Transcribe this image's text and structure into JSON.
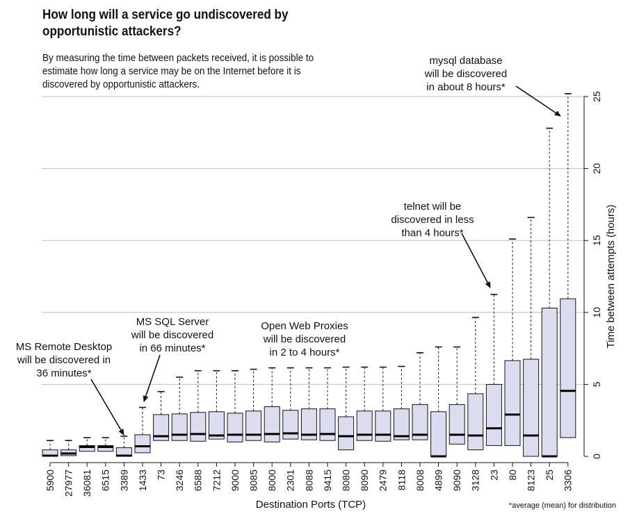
{
  "title": "How long will a service go undiscovered by opportunistic attackers?",
  "subtitle": "By measuring the time between packets received, it is possible to estimate how long a service may be on the Internet before it is discovered by opportunistic attackers.",
  "footnote": "*average (mean) for distribution",
  "annotations": {
    "mysql": "mysql database\nwill be discovered\nin about 8 hours*",
    "telnet": "telnet will be\ndiscovered in less\nthan 4 hours*",
    "proxies": "Open Web Proxies\nwill be discovered\nin 2 to 4 hours*",
    "mssql": "MS SQL Server\nwill be discovered\nin 66 minutes*",
    "rdp": "MS Remote Desktop\nwill be discovered in\n36 minutes*"
  },
  "chart_data": {
    "type": "boxplot",
    "xlabel": "Destination Ports (TCP)",
    "ylabel": "Time between attempts (hours)",
    "ylim": [
      0,
      25
    ],
    "yticks": [
      0,
      5,
      10,
      15,
      20,
      25
    ],
    "grid": "horizontal",
    "y_axis_side": "right",
    "box_color": "#dcdcf0",
    "categories": [
      "5900",
      "27977",
      "36081",
      "6515",
      "3389",
      "1433",
      "73",
      "3246",
      "6588",
      "7212",
      "9000",
      "8085",
      "8000",
      "2301",
      "8088",
      "9415",
      "8080",
      "8090",
      "2479",
      "8118",
      "8008",
      "4899",
      "9090",
      "3128",
      "23",
      "80",
      "8123",
      "25",
      "3306"
    ],
    "series": [
      {
        "values": [
          {
            "whisker_low": 0,
            "q1": 0.0,
            "median": 0.05,
            "q3": 0.45,
            "whisker_high": 1.1
          },
          {
            "whisker_low": 0,
            "q1": 0.05,
            "median": 0.2,
            "q3": 0.45,
            "whisker_high": 1.1
          },
          {
            "whisker_low": 0,
            "q1": 0.35,
            "median": 0.65,
            "q3": 0.75,
            "whisker_high": 1.3
          },
          {
            "whisker_low": 0,
            "q1": 0.35,
            "median": 0.65,
            "q3": 0.75,
            "whisker_high": 1.3
          },
          {
            "whisker_low": 0,
            "q1": 0.0,
            "median": 0.05,
            "q3": 0.6,
            "whisker_high": 1.4
          },
          {
            "whisker_low": 0,
            "q1": 0.25,
            "median": 0.7,
            "q3": 1.5,
            "whisker_high": 3.4
          },
          {
            "whisker_low": 0,
            "q1": 1.1,
            "median": 1.4,
            "q3": 2.9,
            "whisker_high": 4.5
          },
          {
            "whisker_low": 0,
            "q1": 1.1,
            "median": 1.5,
            "q3": 2.95,
            "whisker_high": 5.5
          },
          {
            "whisker_low": 0,
            "q1": 1.05,
            "median": 1.55,
            "q3": 3.05,
            "whisker_high": 5.95
          },
          {
            "whisker_low": 0,
            "q1": 1.2,
            "median": 1.45,
            "q3": 3.1,
            "whisker_high": 5.95
          },
          {
            "whisker_low": 0,
            "q1": 1.0,
            "median": 1.5,
            "q3": 3.0,
            "whisker_high": 5.95
          },
          {
            "whisker_low": 0,
            "q1": 1.1,
            "median": 1.5,
            "q3": 3.15,
            "whisker_high": 6.05
          },
          {
            "whisker_low": 0,
            "q1": 1.0,
            "median": 1.55,
            "q3": 3.45,
            "whisker_high": 6.15
          },
          {
            "whisker_low": 0,
            "q1": 1.2,
            "median": 1.6,
            "q3": 3.2,
            "whisker_high": 6.15
          },
          {
            "whisker_low": 0,
            "q1": 1.15,
            "median": 1.5,
            "q3": 3.3,
            "whisker_high": 6.15
          },
          {
            "whisker_low": 0,
            "q1": 1.1,
            "median": 1.55,
            "q3": 3.3,
            "whisker_high": 6.15
          },
          {
            "whisker_low": 0,
            "q1": 0.45,
            "median": 1.4,
            "q3": 2.75,
            "whisker_high": 6.2
          },
          {
            "whisker_low": 0,
            "q1": 1.1,
            "median": 1.5,
            "q3": 3.15,
            "whisker_high": 6.2
          },
          {
            "whisker_low": 0,
            "q1": 1.05,
            "median": 1.5,
            "q3": 3.15,
            "whisker_high": 6.2
          },
          {
            "whisker_low": 0,
            "q1": 1.15,
            "median": 1.4,
            "q3": 3.3,
            "whisker_high": 6.25
          },
          {
            "whisker_low": 0,
            "q1": 1.15,
            "median": 1.5,
            "q3": 3.6,
            "whisker_high": 7.2
          },
          {
            "whisker_low": 0,
            "q1": 0.0,
            "median": 0.0,
            "q3": 3.1,
            "whisker_high": 7.6
          },
          {
            "whisker_low": 0,
            "q1": 0.85,
            "median": 1.5,
            "q3": 3.6,
            "whisker_high": 7.6
          },
          {
            "whisker_low": 0,
            "q1": 0.45,
            "median": 1.45,
            "q3": 4.35,
            "whisker_high": 9.65
          },
          {
            "whisker_low": 0,
            "q1": 0.75,
            "median": 1.95,
            "q3": 5.0,
            "whisker_high": 11.25
          },
          {
            "whisker_low": 0,
            "q1": 0.75,
            "median": 2.9,
            "q3": 6.65,
            "whisker_high": 15.1
          },
          {
            "whisker_low": 0,
            "q1": 0.0,
            "median": 1.45,
            "q3": 6.75,
            "whisker_high": 16.6
          },
          {
            "whisker_low": 0,
            "q1": 0.0,
            "median": 0.0,
            "q3": 10.3,
            "whisker_high": 22.8
          },
          {
            "whisker_low": 0,
            "q1": 1.3,
            "median": 4.55,
            "q3": 10.95,
            "whisker_high": 25.2
          }
        ]
      }
    ]
  }
}
